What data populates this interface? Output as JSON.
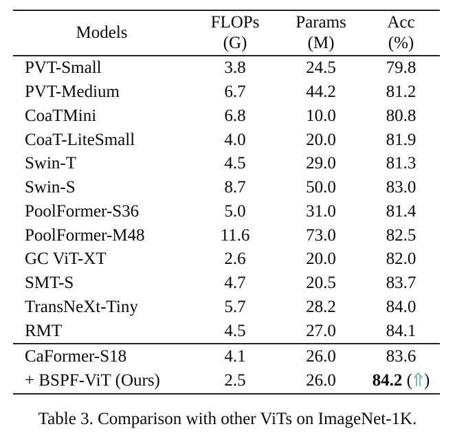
{
  "colors": {
    "background": "#ffffff",
    "text": "#0a0a0a",
    "rule": "#222222",
    "arrow_green": "#5bbd92"
  },
  "table": {
    "header": {
      "models_label": "Models",
      "columns": [
        {
          "line1": "FLOPs",
          "line2": "(G)"
        },
        {
          "line1": "Params",
          "line2": "(M)"
        },
        {
          "line1": "Acc",
          "line2": "(%)"
        }
      ]
    },
    "groups": [
      {
        "rows": [
          {
            "model": "PVT-Small",
            "flops": "3.8",
            "params": "24.5",
            "acc": "79.8"
          },
          {
            "model": "PVT-Medium",
            "flops": "6.7",
            "params": "44.2",
            "acc": "81.2"
          },
          {
            "model": "CoaTMini",
            "flops": "6.8",
            "params": "10.0",
            "acc": "80.8"
          },
          {
            "model": "CoaT-LiteSmall",
            "flops": "4.0",
            "params": "20.0",
            "acc": "81.9"
          },
          {
            "model": "Swin-T",
            "flops": "4.5",
            "params": "29.0",
            "acc": "81.3"
          },
          {
            "model": "Swin-S",
            "flops": "8.7",
            "params": "50.0",
            "acc": "83.0"
          },
          {
            "model": "PoolFormer-S36",
            "flops": "5.0",
            "params": "31.0",
            "acc": "81.4"
          },
          {
            "model": "PoolFormer-M48",
            "flops": "11.6",
            "params": "73.0",
            "acc": "82.5"
          },
          {
            "model": "GC ViT-XT",
            "flops": "2.6",
            "params": "20.0",
            "acc": "82.0"
          },
          {
            "model": "SMT-S",
            "flops": "4.7",
            "params": "20.5",
            "acc": "83.7"
          },
          {
            "model": "TransNeXt-Tiny",
            "flops": "5.7",
            "params": "28.2",
            "acc": "84.0"
          },
          {
            "model": "RMT",
            "flops": "4.5",
            "params": "27.0",
            "acc": "84.1"
          }
        ]
      },
      {
        "rows": [
          {
            "model": "CaFormer-S18",
            "flops": "4.1",
            "params": "26.0",
            "acc": "83.6"
          },
          {
            "model": "+ BSPF-ViT (Ours)",
            "flops": "2.5",
            "params": "26.0",
            "acc": "84.2",
            "acc_bold": true,
            "paren_open": "(",
            "arrow_icon": "up-arrow",
            "paren_close": ")"
          }
        ]
      }
    ],
    "caption": "Table 3. Comparison with other ViTs on ImageNet-1K."
  }
}
